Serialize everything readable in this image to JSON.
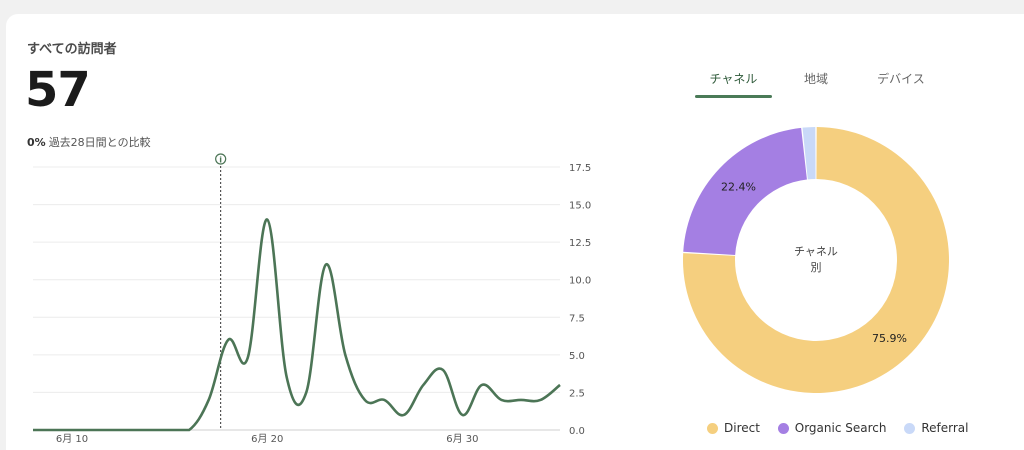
{
  "card": {
    "title": "すべての訪問者",
    "value": "57",
    "compare_pct": "0%",
    "compare_text": "過去28日間との比較"
  },
  "tabs": [
    {
      "label": "チャネル",
      "active": true
    },
    {
      "label": "地域",
      "active": false
    },
    {
      "label": "デバイス",
      "active": false
    }
  ],
  "chart_data": [
    {
      "type": "line",
      "x": [
        "6/8",
        "6/9",
        "6/10",
        "6/11",
        "6/12",
        "6/13",
        "6/14",
        "6/15",
        "6/16",
        "6/17",
        "6/18",
        "6/19",
        "6/20",
        "6/21",
        "6/22",
        "6/23",
        "6/24",
        "6/25",
        "6/26",
        "6/27",
        "6/28",
        "6/29",
        "6/30",
        "7/1",
        "7/2",
        "7/3",
        "7/4",
        "7/5"
      ],
      "x_tick_labels": [
        "6月 10",
        "6月 20",
        "6月 30"
      ],
      "x_tick_index": [
        2,
        12,
        22
      ],
      "y_ticks": [
        "0.0",
        "2.5",
        "5.0",
        "7.5",
        "10.0",
        "12.5",
        "15.0",
        "17.5"
      ],
      "ylim": [
        0,
        17.5
      ],
      "series": [
        {
          "color": "#4c7556",
          "values": [
            0,
            0,
            0,
            0,
            0,
            0,
            0,
            0,
            0,
            2,
            6,
            4.8,
            14,
            3.5,
            2.5,
            11,
            5,
            2,
            2,
            1,
            3,
            4,
            1,
            3,
            2,
            2,
            2,
            3
          ]
        }
      ],
      "annotation_marker_index": 9,
      "grid": true
    },
    {
      "type": "pie",
      "center_label_line1": "チャネル",
      "center_label_line2": "別",
      "slices": [
        {
          "name": "Direct",
          "value": 75.9,
          "label": "75.9%",
          "color": "#f5cf7f"
        },
        {
          "name": "Organic Search",
          "value": 22.4,
          "label": "22.4%",
          "color": "#a47fe3"
        },
        {
          "name": "Referral",
          "value": 1.7,
          "label": "",
          "color": "#c9d9f8"
        }
      ]
    }
  ],
  "legend": [
    {
      "label": "Direct",
      "color": "#f5cf7f"
    },
    {
      "label": "Organic Search",
      "color": "#a47fe3"
    },
    {
      "label": "Referral",
      "color": "#c9d9f8"
    }
  ]
}
